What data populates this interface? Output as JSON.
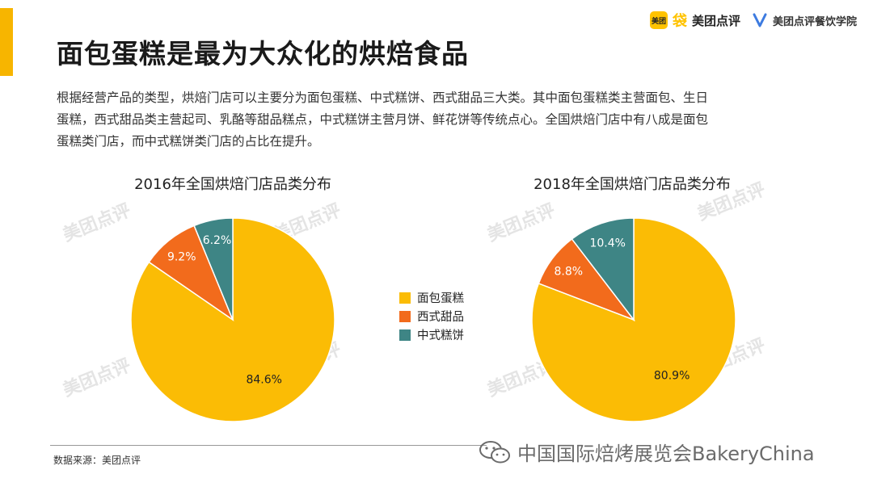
{
  "header": {
    "title": "面包蛋糕是最为大众化的烘焙食品",
    "accent_color": "#F7B500",
    "logo_primary": {
      "badge": "美团",
      "mark": "袋",
      "name": "美团点评",
      "color": "#FFC300"
    },
    "logo_secondary": {
      "name": "美团点评餐饮学院",
      "color": "#3D7BE0"
    }
  },
  "intro": {
    "lines": [
      "根据经营产品的类型，烘焙门店可以主要分为面包蛋糕、中式糕饼、西式甜品三大类。其中面包蛋糕类主营面包、生日",
      "蛋糕，西式甜品类主营起司、乳酪等甜品糕点，中式糕饼主营月饼、鲜花饼等传统点心。全国烘焙门店中有八成是面包",
      "蛋糕类门店，而中式糕饼类门店的占比在提升。"
    ]
  },
  "legend": [
    {
      "label": "面包蛋糕",
      "color": "#FBBC05"
    },
    {
      "label": "西式甜品",
      "color": "#F26B1C"
    },
    {
      "label": "中式糕饼",
      "color": "#3E8585"
    }
  ],
  "chart_data": [
    {
      "type": "pie",
      "title": "2016年全国烘焙门店品类分布",
      "categories": [
        "面包蛋糕",
        "西式甜品",
        "中式糕饼"
      ],
      "values": [
        84.6,
        9.2,
        6.2
      ],
      "labels": [
        "84.6%",
        "9.2%",
        "6.2%"
      ],
      "colors": [
        "#FBBC05",
        "#F26B1C",
        "#3E8585"
      ],
      "legend": "center-between-charts"
    },
    {
      "type": "pie",
      "title": "2018年全国烘焙门店品类分布",
      "categories": [
        "面包蛋糕",
        "西式甜品",
        "中式糕饼"
      ],
      "values": [
        80.9,
        8.8,
        10.4
      ],
      "labels": [
        "80.9%",
        "8.8%",
        "10.4%"
      ],
      "colors": [
        "#FBBC05",
        "#F26B1C",
        "#3E8585"
      ],
      "legend": "center-between-charts"
    }
  ],
  "footer": {
    "source": "数据来源：美团点评",
    "watermark": "中国国际焙烤展览会BakeryChina"
  },
  "background_watermark": "美团点评"
}
